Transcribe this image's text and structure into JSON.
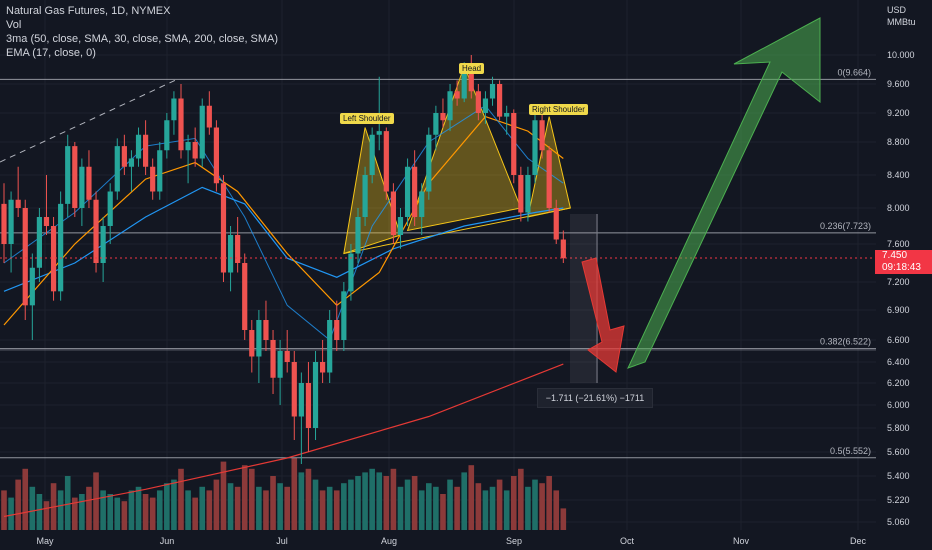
{
  "legend": {
    "line1": "Natural Gas Futures, 1D, NYMEX",
    "line2": "Vol",
    "line3": "3ma (50, close, SMA, 30, close, SMA, 200, close, SMA)",
    "line4": "EMA (17, close, 0)"
  },
  "units": {
    "top": "USD",
    "bottom": "MMBtu"
  },
  "last_price": {
    "value": "7.450",
    "countdown": "09:18:43"
  },
  "measure_label": "−1.711 (−21.61%) −1711",
  "patterns": {
    "left": "Left Shoulder",
    "head": "Head",
    "right": "Right Shoulder"
  },
  "colors": {
    "bg": "#131722",
    "up": "#26a69a",
    "down": "#ef5350",
    "sma50": "#2196f3",
    "sma30": "#ff9800",
    "sma200": "#e53935",
    "green_arrow": "#4caf50",
    "red_arrow": "#e53935",
    "pattern": "#f5c518"
  },
  "chart_data": {
    "type": "candlestick",
    "title": "Natural Gas Futures, 1D, NYMEX",
    "y_ticks": [
      "10.000",
      "9.600",
      "9.200",
      "8.800",
      "8.400",
      "8.000",
      "7.600",
      "7.200",
      "6.900",
      "6.600",
      "6.400",
      "6.200",
      "6.000",
      "5.800",
      "5.600",
      "5.400",
      "5.220",
      "5.060"
    ],
    "x_ticks": [
      "May",
      "Jun",
      "Jul",
      "Aug",
      "Sep",
      "Oct",
      "Nov",
      "Dec"
    ],
    "fib_levels": [
      {
        "label": "0(9.664)",
        "value": 9.664
      },
      {
        "label": "0.236(7.723)",
        "value": 7.723
      },
      {
        "label": "0.382(6.522)",
        "value": 6.522
      },
      {
        "label": "0.5(5.552)",
        "value": 5.552
      }
    ],
    "candles": [
      [
        8.05,
        8.3,
        7.4,
        7.6
      ],
      [
        7.6,
        8.2,
        7.3,
        8.1
      ],
      [
        8.1,
        8.5,
        7.9,
        8.0
      ],
      [
        8.0,
        8.1,
        6.8,
        6.95
      ],
      [
        6.95,
        7.5,
        6.6,
        7.35
      ],
      [
        7.35,
        8.0,
        7.2,
        7.9
      ],
      [
        7.9,
        8.4,
        7.7,
        7.8
      ],
      [
        7.8,
        7.9,
        7.0,
        7.1
      ],
      [
        7.1,
        8.2,
        7.0,
        8.05
      ],
      [
        8.05,
        8.9,
        7.9,
        8.75
      ],
      [
        8.75,
        8.8,
        7.9,
        8.0
      ],
      [
        8.0,
        8.6,
        7.8,
        8.5
      ],
      [
        8.5,
        8.7,
        8.0,
        8.1
      ],
      [
        8.1,
        8.2,
        7.3,
        7.4
      ],
      [
        7.4,
        7.9,
        7.2,
        7.8
      ],
      [
        7.8,
        8.3,
        7.6,
        8.2
      ],
      [
        8.2,
        8.85,
        8.1,
        8.75
      ],
      [
        8.75,
        8.9,
        8.4,
        8.5
      ],
      [
        8.5,
        8.7,
        8.2,
        8.6
      ],
      [
        8.6,
        9.0,
        8.5,
        8.9
      ],
      [
        8.9,
        9.1,
        8.4,
        8.5
      ],
      [
        8.5,
        8.6,
        8.1,
        8.2
      ],
      [
        8.2,
        8.8,
        8.1,
        8.7
      ],
      [
        8.7,
        9.2,
        8.6,
        9.1
      ],
      [
        9.1,
        9.5,
        8.9,
        9.4
      ],
      [
        9.4,
        9.6,
        8.6,
        8.7
      ],
      [
        8.7,
        8.9,
        8.3,
        8.8
      ],
      [
        8.8,
        9.0,
        8.5,
        8.6
      ],
      [
        8.6,
        9.4,
        8.5,
        9.3
      ],
      [
        9.3,
        9.5,
        8.9,
        9.0
      ],
      [
        9.0,
        9.1,
        8.2,
        8.3
      ],
      [
        8.3,
        8.4,
        7.2,
        7.3
      ],
      [
        7.3,
        7.8,
        7.1,
        7.7
      ],
      [
        7.7,
        7.9,
        7.3,
        7.4
      ],
      [
        7.4,
        7.5,
        6.6,
        6.7
      ],
      [
        6.7,
        6.8,
        6.3,
        6.45
      ],
      [
        6.45,
        6.9,
        6.2,
        6.8
      ],
      [
        6.8,
        7.0,
        6.5,
        6.6
      ],
      [
        6.6,
        6.7,
        6.1,
        6.25
      ],
      [
        6.25,
        6.6,
        6.0,
        6.5
      ],
      [
        6.5,
        6.7,
        6.3,
        6.4
      ],
      [
        6.4,
        6.5,
        5.7,
        5.9
      ],
      [
        5.9,
        6.3,
        5.5,
        6.2
      ],
      [
        6.2,
        6.4,
        5.6,
        5.8
      ],
      [
        5.8,
        6.5,
        5.7,
        6.4
      ],
      [
        6.4,
        6.6,
        6.2,
        6.3
      ],
      [
        6.3,
        6.9,
        6.2,
        6.8
      ],
      [
        6.8,
        7.0,
        6.5,
        6.6
      ],
      [
        6.6,
        7.2,
        6.5,
        7.1
      ],
      [
        7.1,
        7.6,
        7.0,
        7.5
      ],
      [
        7.5,
        8.0,
        7.4,
        7.9
      ],
      [
        7.9,
        8.5,
        7.8,
        8.4
      ],
      [
        8.4,
        9.0,
        8.3,
        8.9
      ],
      [
        8.9,
        9.7,
        8.7,
        8.95
      ],
      [
        8.95,
        9.0,
        8.1,
        8.2
      ],
      [
        8.2,
        8.3,
        7.6,
        7.7
      ],
      [
        7.7,
        8.0,
        7.55,
        7.9
      ],
      [
        7.9,
        8.6,
        7.8,
        8.5
      ],
      [
        8.5,
        8.7,
        7.8,
        7.9
      ],
      [
        7.9,
        8.3,
        7.7,
        8.2
      ],
      [
        8.2,
        9.0,
        8.1,
        8.9
      ],
      [
        8.9,
        9.3,
        8.7,
        9.2
      ],
      [
        9.2,
        9.4,
        9.0,
        9.1
      ],
      [
        9.1,
        9.6,
        8.95,
        9.5
      ],
      [
        9.5,
        9.65,
        9.3,
        9.4
      ],
      [
        9.4,
        9.9,
        9.35,
        9.8
      ],
      [
        9.8,
        10.0,
        9.4,
        9.5
      ],
      [
        9.5,
        9.6,
        9.1,
        9.2
      ],
      [
        9.2,
        9.5,
        9.05,
        9.4
      ],
      [
        9.4,
        9.7,
        9.3,
        9.6
      ],
      [
        9.6,
        9.65,
        9.1,
        9.15
      ],
      [
        9.15,
        9.3,
        8.9,
        9.2
      ],
      [
        9.2,
        9.25,
        8.3,
        8.4
      ],
      [
        8.4,
        8.5,
        7.85,
        7.95
      ],
      [
        7.95,
        8.5,
        7.85,
        8.4
      ],
      [
        8.4,
        9.2,
        8.3,
        9.1
      ],
      [
        9.1,
        9.3,
        8.6,
        8.7
      ],
      [
        8.7,
        8.75,
        7.95,
        8.0
      ],
      [
        8.0,
        8.1,
        7.6,
        7.65
      ],
      [
        7.65,
        7.75,
        7.4,
        7.45
      ]
    ],
    "volume": [
      0.55,
      0.45,
      0.7,
      0.85,
      0.6,
      0.5,
      0.4,
      0.65,
      0.55,
      0.75,
      0.45,
      0.5,
      0.6,
      0.8,
      0.55,
      0.5,
      0.45,
      0.4,
      0.55,
      0.6,
      0.5,
      0.45,
      0.55,
      0.65,
      0.7,
      0.85,
      0.55,
      0.45,
      0.6,
      0.55,
      0.7,
      0.95,
      0.65,
      0.6,
      0.9,
      0.85,
      0.6,
      0.55,
      0.75,
      0.65,
      0.6,
      1.0,
      0.8,
      0.85,
      0.7,
      0.55,
      0.6,
      0.55,
      0.65,
      0.7,
      0.75,
      0.8,
      0.85,
      0.8,
      0.75,
      0.85,
      0.6,
      0.7,
      0.75,
      0.55,
      0.65,
      0.6,
      0.5,
      0.7,
      0.6,
      0.8,
      0.9,
      0.65,
      0.55,
      0.6,
      0.7,
      0.55,
      0.75,
      0.85,
      0.6,
      0.7,
      0.65,
      0.75,
      0.55,
      0.3
    ],
    "sma50": [
      [
        0,
        7.1
      ],
      [
        10,
        7.4
      ],
      [
        20,
        7.9
      ],
      [
        28,
        8.25
      ],
      [
        34,
        8.05
      ],
      [
        40,
        7.45
      ],
      [
        47,
        7.25
      ],
      [
        55,
        7.55
      ],
      [
        65,
        7.8
      ],
      [
        75,
        7.95
      ],
      [
        79,
        8.0
      ]
    ],
    "sma30": [
      [
        0,
        6.75
      ],
      [
        10,
        7.6
      ],
      [
        20,
        8.35
      ],
      [
        27,
        8.55
      ],
      [
        33,
        8.2
      ],
      [
        40,
        7.5
      ],
      [
        47,
        6.95
      ],
      [
        53,
        7.3
      ],
      [
        60,
        8.3
      ],
      [
        68,
        9.15
      ],
      [
        74,
        8.95
      ],
      [
        79,
        8.6
      ]
    ],
    "ema17": [
      [
        0,
        7.4
      ],
      [
        10,
        7.95
      ],
      [
        20,
        8.75
      ],
      [
        27,
        8.85
      ],
      [
        34,
        7.9
      ],
      [
        40,
        6.95
      ],
      [
        46,
        6.6
      ],
      [
        52,
        7.8
      ],
      [
        60,
        8.8
      ],
      [
        68,
        9.3
      ],
      [
        74,
        8.6
      ],
      [
        79,
        8.3
      ]
    ],
    "sma200": [
      [
        0,
        5.1
      ],
      [
        20,
        5.3
      ],
      [
        40,
        5.55
      ],
      [
        60,
        5.9
      ],
      [
        79,
        6.38
      ]
    ],
    "measure": {
      "from": 7.923,
      "to": 6.212,
      "change": -1.711,
      "pct": -21.61
    }
  }
}
